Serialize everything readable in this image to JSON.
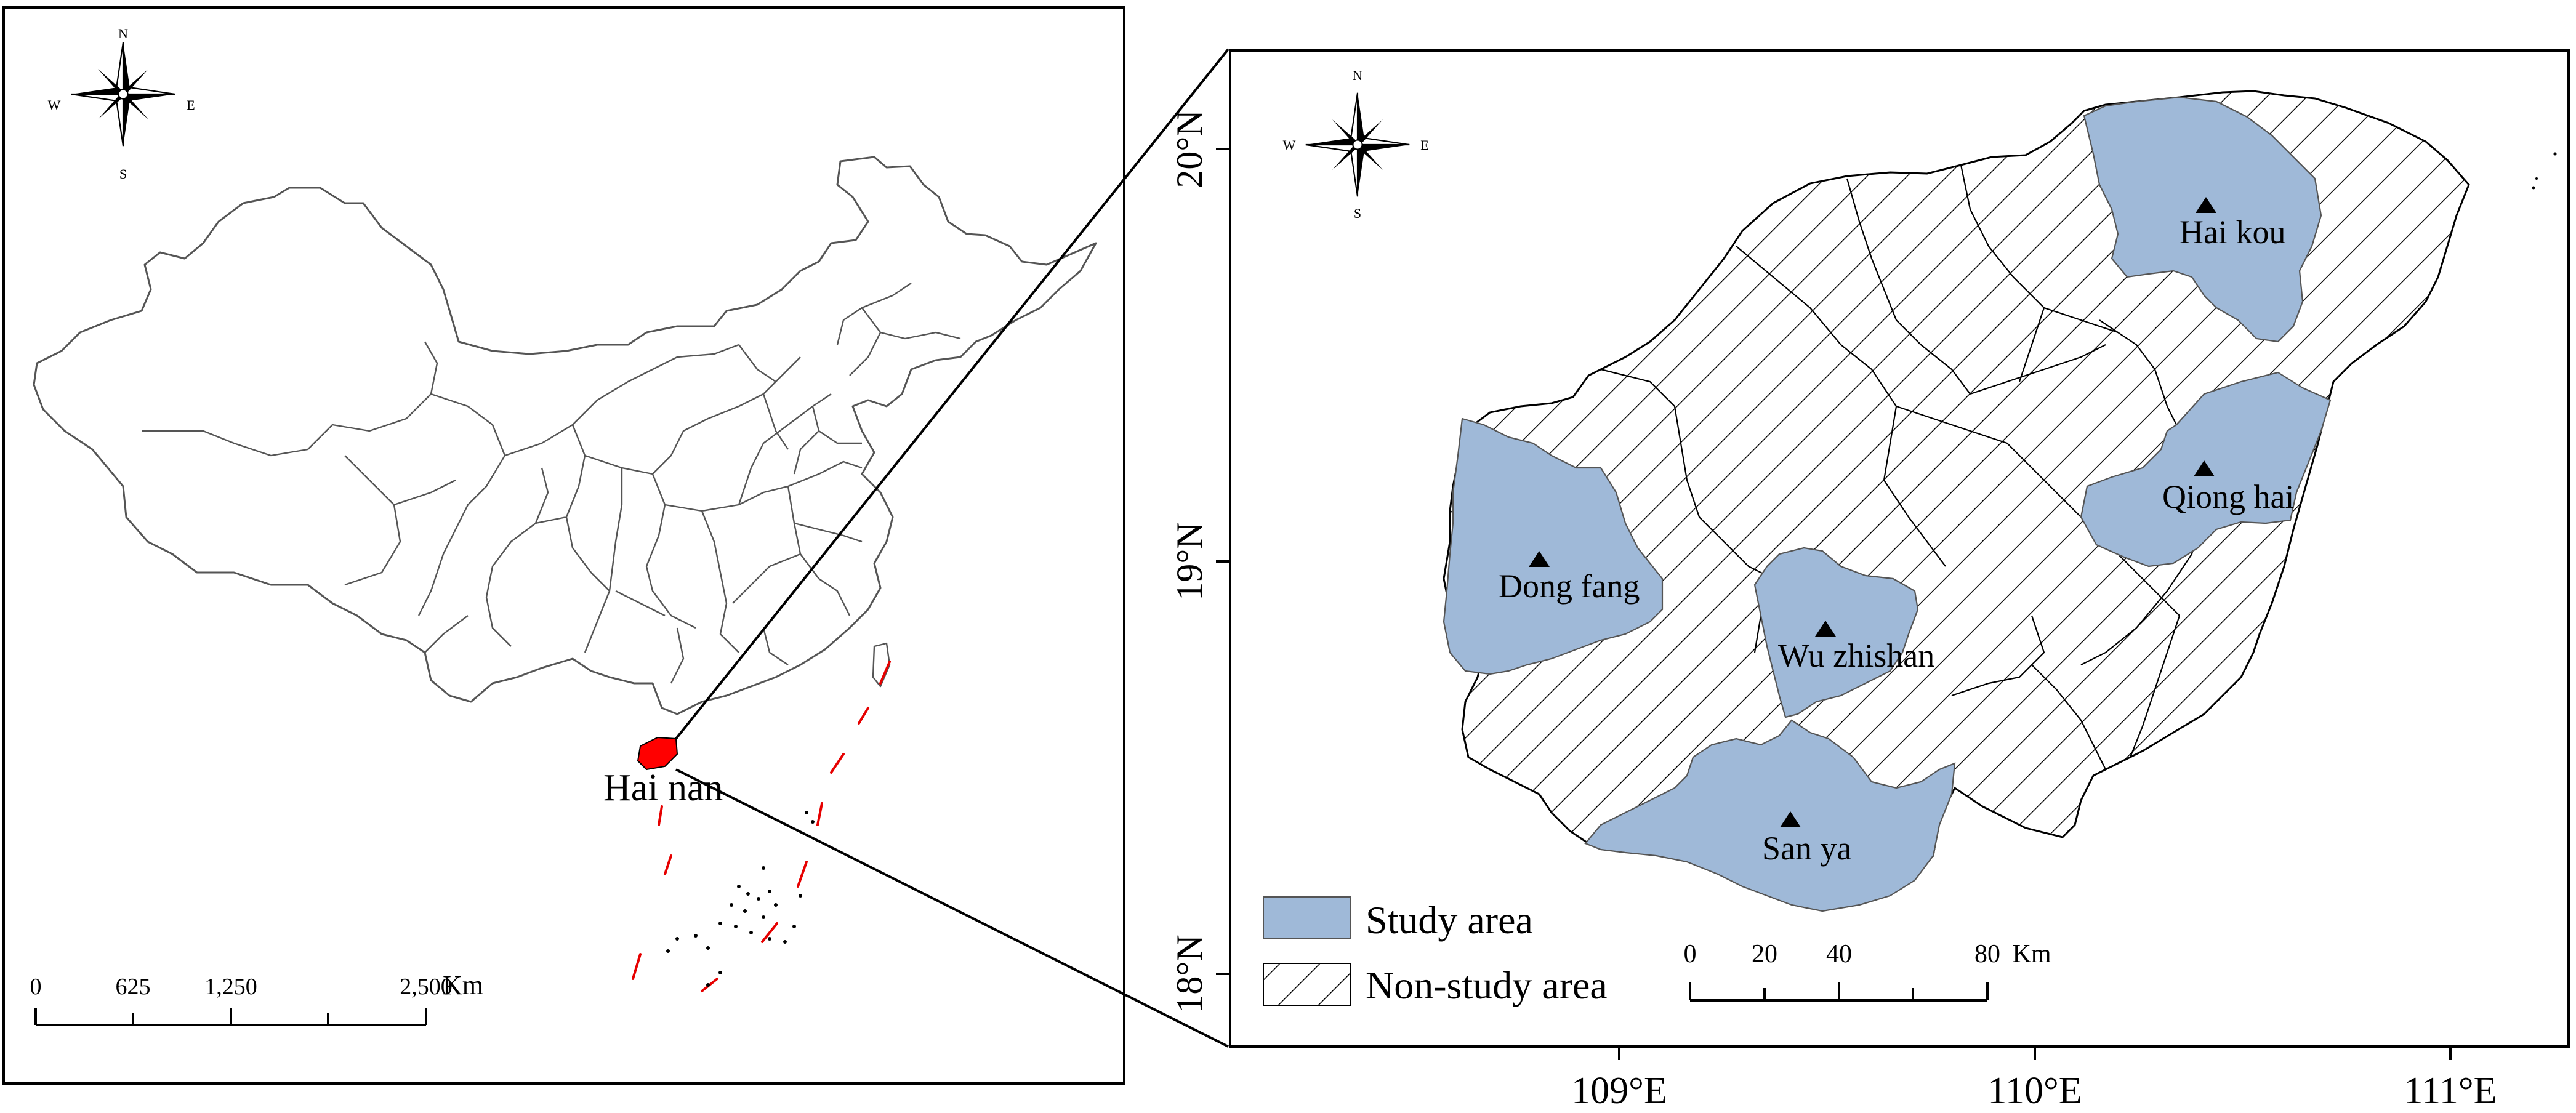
{
  "left_map": {
    "compass": {
      "n": "N",
      "s": "S",
      "e": "E",
      "w": "W"
    },
    "region_label": "Hai nan",
    "scale": {
      "ticks": [
        "0",
        "625",
        "1,250",
        "2,500"
      ],
      "unit": "Km"
    },
    "highlight_color": "#ff0000",
    "border_color": "#555555"
  },
  "right_map": {
    "compass": {
      "n": "N",
      "s": "S",
      "e": "E",
      "w": "W"
    },
    "cities": [
      {
        "name": "Hai kou"
      },
      {
        "name": "Qiong hai"
      },
      {
        "name": "Dong fang"
      },
      {
        "name": "Wu zhishan"
      },
      {
        "name": "San ya"
      }
    ],
    "legend": {
      "study": "Study area",
      "nonstudy": "Non-study area"
    },
    "scale": {
      "ticks": [
        "0",
        "20",
        "40",
        "80"
      ],
      "unit": "Km"
    },
    "lat_labels": [
      "20°N",
      "19°N",
      "18°N"
    ],
    "lon_labels": [
      "109°E",
      "110°E",
      "111°E"
    ],
    "study_color": "#9fb9d8",
    "hatch_color": "#000000"
  }
}
